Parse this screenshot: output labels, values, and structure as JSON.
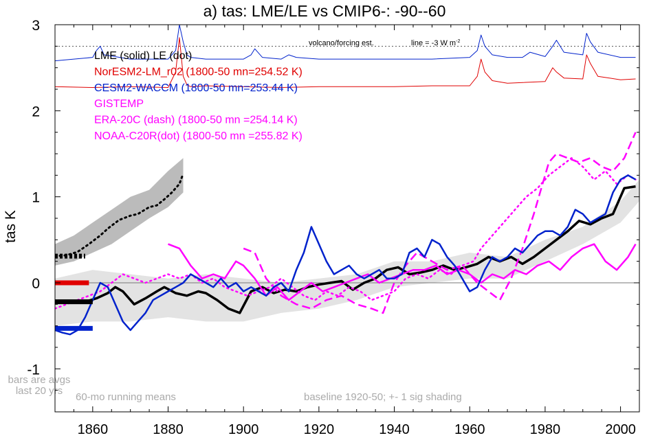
{
  "chart_data": {
    "type": "line",
    "title": "a) tas: LME/LE vs CMIP6-: -90--60",
    "xlabel": "",
    "ylabel": "tas K",
    "xlim": [
      1850,
      2005
    ],
    "ylim": [
      -1.5,
      3.0
    ],
    "x_ticks": [
      1860,
      1880,
      1900,
      1920,
      1940,
      1960,
      1980,
      2000
    ],
    "y_ticks": [
      -1,
      0,
      1,
      2,
      3
    ],
    "y_tick_labels": [
      "-1",
      "0",
      "1",
      "2",
      "3"
    ],
    "colors": {
      "black": "#000000",
      "red": "#e00000",
      "blue": "#0022cc",
      "magenta": "#ff00ff",
      "shade_dark": "#bbbbbb",
      "shade_light": "#e3e3e3",
      "gray_text": "#aaaaaa"
    },
    "legend": [
      {
        "text": "LME (solid)   LE (dot)",
        "color": "#000000"
      },
      {
        "text": "NorESM2-LM_r02 (1800-50 mn=254.52 K)",
        "color": "#e00000"
      },
      {
        "text": "CESM2-WACCM (1800-50 mn=253.44 K)",
        "color": "#0022cc"
      },
      {
        "text": "GISTEMP",
        "color": "#ff00ff"
      },
      {
        "text": "ERA-20C (dash) (1800-50 mn =254.14 K)",
        "color": "#ff00ff"
      },
      {
        "text": "NOAA-C20R(dot) (1800-50 mn =255.82 K)",
        "color": "#ff00ff"
      }
    ],
    "annotations": {
      "volcano_label": "volcano/forcing est.",
      "forcing_line_label": "line = -3 W m",
      "forcing_line_sup": "-2",
      "bars_note_1": "bars are avgs",
      "bars_note_2": "last 20 yrs",
      "running_mean_note": "60-mo running means",
      "baseline_note": "baseline 1920-50; +- 1 sig shading"
    },
    "reference_lines": {
      "zero": 0,
      "forcing": 2.75
    },
    "bars": [
      {
        "name": "lme-bar",
        "color": "#000000",
        "value": 0.31,
        "x0": 1850,
        "x1": 1858,
        "style": "dot"
      },
      {
        "name": "le-bar",
        "color": "#000000",
        "value": -0.22,
        "x0": 1850,
        "x1": 1860,
        "style": "solid"
      },
      {
        "name": "noresm-bar",
        "color": "#e00000",
        "value": 0.0,
        "x0": 1850,
        "x1": 1859,
        "style": "solid"
      },
      {
        "name": "cesm-bar",
        "color": "#0022cc",
        "value": -0.53,
        "x0": 1850,
        "x1": 1860,
        "style": "solid"
      }
    ],
    "le_band": {
      "x": [
        1850,
        1855,
        1860,
        1865,
        1870,
        1875,
        1880,
        1884
      ],
      "upper": [
        0.45,
        0.55,
        0.7,
        0.85,
        1.0,
        1.08,
        1.3,
        1.45
      ],
      "lower": [
        0.2,
        0.25,
        0.35,
        0.45,
        0.6,
        0.75,
        0.88,
        1.05
      ]
    },
    "lme_band": {
      "x": [
        1850,
        1860,
        1870,
        1880,
        1890,
        1900,
        1910,
        1920,
        1930,
        1940,
        1950,
        1960,
        1970,
        1980,
        1990,
        2000,
        2005
      ],
      "upper": [
        0.05,
        0.15,
        0.1,
        0.05,
        0.1,
        0.05,
        0.0,
        0.05,
        0.1,
        0.25,
        0.25,
        0.35,
        0.3,
        0.5,
        0.65,
        0.95,
        1.2
      ],
      "lower": [
        -0.5,
        -0.45,
        -0.45,
        -0.4,
        -0.45,
        -0.45,
        -0.35,
        -0.3,
        -0.2,
        -0.05,
        0.0,
        0.05,
        0.05,
        0.25,
        0.45,
        0.7,
        0.95
      ]
    },
    "series": [
      {
        "name": "le-mean",
        "color": "#000000",
        "dash": "dot",
        "width": 3,
        "x": [
          1850,
          1853,
          1856,
          1859,
          1862,
          1864,
          1867,
          1870,
          1872,
          1875,
          1877,
          1879,
          1881,
          1883,
          1884
        ],
        "y": [
          0.31,
          0.32,
          0.36,
          0.45,
          0.55,
          0.63,
          0.73,
          0.78,
          0.8,
          0.88,
          0.9,
          0.97,
          1.05,
          1.15,
          1.27
        ]
      },
      {
        "name": "noresm-forcing",
        "color": "#e00000",
        "dash": "solid",
        "width": 1,
        "x": [
          1850,
          1860,
          1870,
          1880,
          1882,
          1883,
          1884,
          1885,
          1886,
          1890,
          1900,
          1910,
          1920,
          1930,
          1940,
          1950,
          1960,
          1962,
          1963,
          1964,
          1966,
          1970,
          1980,
          1982,
          1983,
          1985,
          1990,
          1991,
          1992,
          1994,
          2000,
          2004
        ],
        "y": [
          2.28,
          2.27,
          2.28,
          2.27,
          2.45,
          2.85,
          2.4,
          2.3,
          2.28,
          2.29,
          2.28,
          2.27,
          2.28,
          2.28,
          2.28,
          2.29,
          2.29,
          2.4,
          2.6,
          2.45,
          2.35,
          2.32,
          2.34,
          2.5,
          2.45,
          2.38,
          2.37,
          2.65,
          2.55,
          2.4,
          2.36,
          2.37
        ]
      },
      {
        "name": "cesm-forcing",
        "color": "#0022cc",
        "dash": "solid",
        "width": 1,
        "x": [
          1850,
          1855,
          1860,
          1861,
          1862,
          1863,
          1870,
          1880,
          1882,
          1883,
          1884,
          1885,
          1886,
          1890,
          1900,
          1902,
          1903,
          1905,
          1910,
          1912,
          1914,
          1920,
          1930,
          1940,
          1950,
          1960,
          1962,
          1963,
          1964,
          1966,
          1970,
          1974,
          1976,
          1980,
          1982,
          1983,
          1985,
          1990,
          1991,
          1992,
          1994,
          2000,
          2004
        ],
        "y": [
          2.58,
          2.6,
          2.62,
          2.7,
          2.75,
          2.65,
          2.6,
          2.6,
          2.7,
          3.0,
          2.8,
          2.65,
          2.62,
          2.6,
          2.6,
          2.65,
          2.72,
          2.62,
          2.6,
          2.65,
          2.62,
          2.6,
          2.6,
          2.6,
          2.6,
          2.62,
          2.7,
          2.88,
          2.75,
          2.65,
          2.62,
          2.62,
          2.68,
          2.63,
          2.75,
          2.82,
          2.68,
          2.65,
          2.9,
          2.8,
          2.68,
          2.62,
          2.62
        ]
      },
      {
        "name": "lme-mean",
        "color": "#000000",
        "dash": "solid",
        "width": 3.5,
        "x": [
          1850,
          1855,
          1858,
          1861,
          1864,
          1866,
          1868,
          1871,
          1874,
          1877,
          1879,
          1882,
          1885,
          1888,
          1890,
          1893,
          1896,
          1899,
          1902,
          1905,
          1908,
          1911,
          1914,
          1917,
          1920,
          1923,
          1926,
          1929,
          1932,
          1935,
          1938,
          1941,
          1944,
          1947,
          1950,
          1953,
          1956,
          1959,
          1962,
          1965,
          1968,
          1971,
          1974,
          1977,
          1980,
          1983,
          1986,
          1989,
          1992,
          1995,
          1998,
          2001,
          2004
        ],
        "y": [
          -0.22,
          -0.22,
          -0.22,
          -0.18,
          -0.12,
          -0.05,
          -0.1,
          -0.25,
          -0.18,
          -0.1,
          -0.05,
          -0.12,
          -0.15,
          -0.1,
          -0.12,
          -0.2,
          -0.3,
          -0.35,
          -0.1,
          -0.05,
          -0.12,
          -0.08,
          -0.1,
          -0.05,
          -0.02,
          0.0,
          0.02,
          -0.08,
          0.0,
          0.05,
          0.15,
          0.18,
          0.1,
          0.12,
          0.15,
          0.2,
          0.15,
          0.18,
          0.22,
          0.3,
          0.25,
          0.3,
          0.22,
          0.3,
          0.4,
          0.5,
          0.6,
          0.72,
          0.68,
          0.75,
          0.8,
          1.1,
          1.12
        ]
      },
      {
        "name": "gistemp",
        "color": "#ff00ff",
        "dash": "solid",
        "width": 2.5,
        "x": [
          1880,
          1883,
          1886,
          1889,
          1892,
          1895,
          1898,
          1900,
          1903,
          1906,
          1909,
          1912,
          1915,
          1918,
          1921,
          1924,
          1927,
          1930,
          1933,
          1936,
          1939,
          1942,
          1945,
          1948,
          1951,
          1954,
          1957,
          1960,
          1963,
          1966,
          1969,
          1972,
          1975,
          1978,
          1981,
          1984,
          1987,
          1990,
          1993,
          1996,
          1999,
          2002,
          2004
        ],
        "y": [
          0.45,
          0.4,
          0.2,
          0.05,
          0.1,
          0.05,
          0.25,
          0.2,
          0.05,
          -0.15,
          -0.05,
          -0.2,
          -0.1,
          0.0,
          -0.1,
          -0.05,
          0.0,
          0.05,
          0.1,
          0.0,
          0.05,
          0.1,
          0.15,
          0.15,
          0.2,
          0.1,
          0.15,
          0.1,
          0.0,
          0.1,
          0.05,
          0.15,
          0.1,
          0.2,
          0.25,
          0.15,
          0.3,
          0.4,
          0.45,
          0.25,
          0.15,
          0.3,
          0.45
        ]
      },
      {
        "name": "era20c",
        "color": "#ff00ff",
        "dash": "dash",
        "width": 2.5,
        "x": [
          1900,
          1903,
          1906,
          1910,
          1914,
          1918,
          1922,
          1926,
          1930,
          1934,
          1937,
          1940,
          1943,
          1946,
          1950,
          1954,
          1958,
          1962,
          1965,
          1968,
          1971,
          1974,
          1977,
          1979,
          1981,
          1983,
          1986,
          1989,
          1992,
          1995,
          1998,
          2001,
          2004
        ],
        "y": [
          0.4,
          0.35,
          0.05,
          -0.15,
          -0.25,
          -0.3,
          -0.2,
          -0.15,
          -0.25,
          -0.3,
          -0.35,
          0.0,
          0.2,
          0.35,
          0.25,
          0.15,
          0.2,
          0.0,
          -0.1,
          -0.2,
          0.05,
          0.4,
          0.8,
          1.1,
          1.4,
          1.5,
          1.45,
          1.4,
          1.45,
          1.35,
          1.3,
          1.45,
          1.75
        ]
      },
      {
        "name": "noaa-c20r",
        "color": "#ff00ff",
        "dash": "dot",
        "width": 2.5,
        "x": [
          1850,
          1853,
          1856,
          1859,
          1862,
          1865,
          1868,
          1871,
          1874,
          1877,
          1880,
          1883,
          1886,
          1889,
          1892,
          1895,
          1898,
          1901,
          1904,
          1907,
          1910,
          1913,
          1916,
          1919,
          1922,
          1925,
          1928,
          1931,
          1934,
          1937,
          1940,
          1943,
          1946,
          1949,
          1952,
          1955,
          1958,
          1961,
          1963,
          1966,
          1969,
          1972,
          1975,
          1978,
          1981,
          1984,
          1987,
          1990,
          1993,
          1996,
          1999,
          2002,
          2004
        ],
        "y": [
          -0.3,
          -0.25,
          -0.2,
          -0.15,
          -0.1,
          0.0,
          0.1,
          0.05,
          0.0,
          0.05,
          0.1,
          0.05,
          0.1,
          0.0,
          0.05,
          -0.05,
          -0.1,
          -0.15,
          -0.1,
          -0.05,
          0.05,
          -0.05,
          -0.15,
          -0.2,
          -0.1,
          -0.15,
          -0.05,
          -0.1,
          -0.2,
          -0.15,
          -0.1,
          0.05,
          0.1,
          0.05,
          0.15,
          0.1,
          0.2,
          0.25,
          0.4,
          0.55,
          0.7,
          0.85,
          1.0,
          1.1,
          1.25,
          1.35,
          1.45,
          1.35,
          1.2,
          1.3,
          1.15,
          1.25,
          1.2
        ]
      },
      {
        "name": "cesm2-waccm",
        "color": "#0022cc",
        "dash": "solid",
        "width": 2.5,
        "x": [
          1850,
          1852,
          1854,
          1856,
          1858,
          1860,
          1862,
          1864,
          1866,
          1868,
          1870,
          1872,
          1874,
          1876,
          1878,
          1880,
          1882,
          1884,
          1886,
          1888,
          1890,
          1892,
          1894,
          1896,
          1898,
          1900,
          1902,
          1904,
          1906,
          1908,
          1910,
          1912,
          1914,
          1916,
          1918,
          1920,
          1922,
          1924,
          1926,
          1928,
          1930,
          1932,
          1934,
          1936,
          1938,
          1940,
          1942,
          1944,
          1946,
          1948,
          1950,
          1952,
          1954,
          1956,
          1958,
          1960,
          1962,
          1964,
          1966,
          1968,
          1970,
          1972,
          1974,
          1976,
          1978,
          1980,
          1982,
          1984,
          1986,
          1988,
          1990,
          1992,
          1994,
          1996,
          1998,
          2000,
          2002,
          2004
        ],
        "y": [
          -0.55,
          -0.58,
          -0.6,
          -0.55,
          -0.4,
          -0.2,
          0.0,
          -0.05,
          -0.25,
          -0.45,
          -0.55,
          -0.45,
          -0.35,
          -0.2,
          -0.15,
          -0.1,
          -0.05,
          0.0,
          0.1,
          0.05,
          0.0,
          -0.05,
          0.05,
          -0.05,
          0.0,
          -0.1,
          -0.05,
          -0.1,
          -0.15,
          -0.05,
          0.0,
          -0.1,
          0.15,
          0.35,
          0.65,
          0.45,
          0.25,
          0.1,
          0.15,
          0.2,
          0.1,
          0.05,
          0.1,
          0.15,
          0.05,
          0.05,
          0.1,
          0.35,
          0.4,
          0.3,
          0.5,
          0.45,
          0.3,
          0.2,
          0.05,
          -0.1,
          -0.05,
          0.15,
          0.3,
          0.25,
          0.3,
          0.4,
          0.35,
          0.45,
          0.55,
          0.6,
          0.6,
          0.55,
          0.65,
          0.85,
          0.8,
          0.7,
          0.75,
          0.8,
          1.05,
          1.2,
          1.25,
          1.2
        ]
      }
    ]
  }
}
